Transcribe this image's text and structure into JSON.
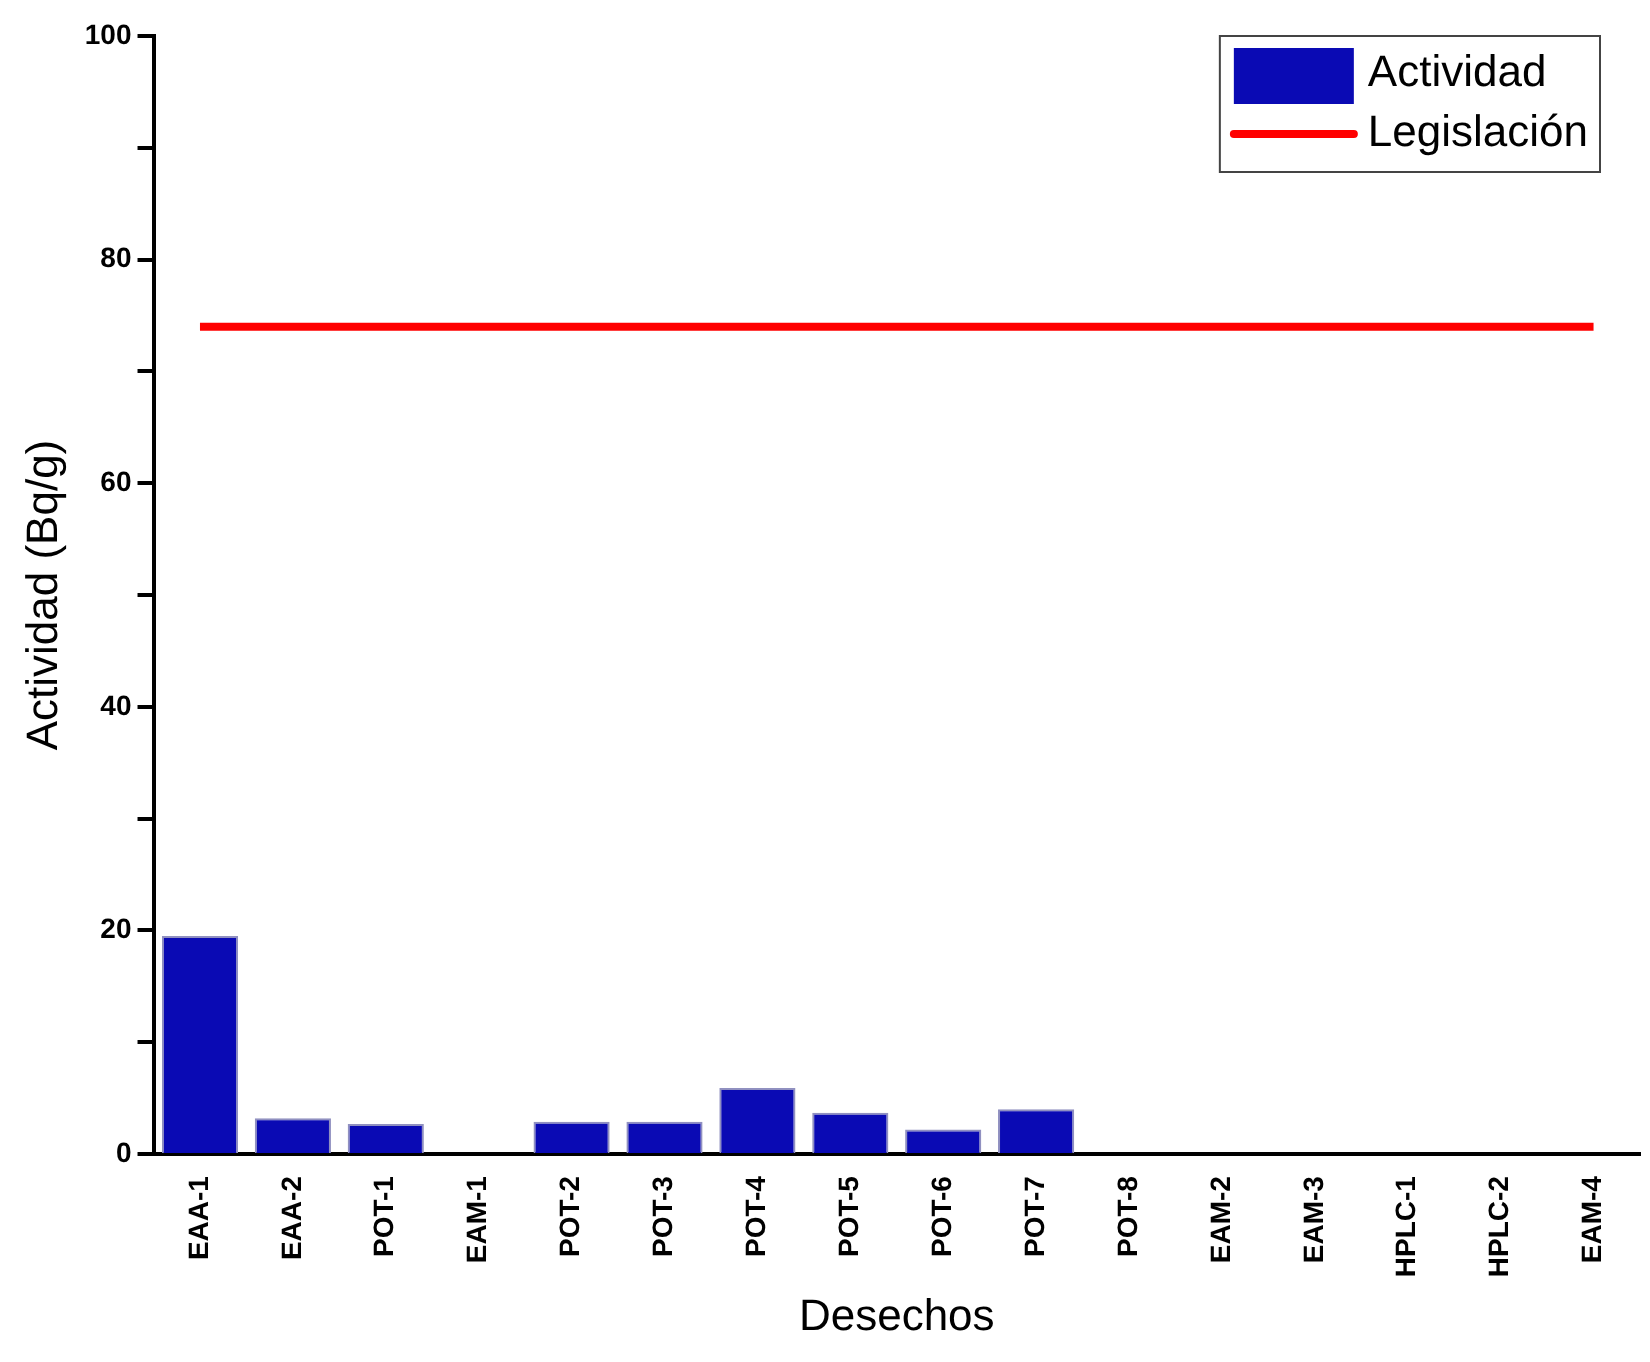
{
  "chart_data": {
    "type": "bar",
    "xlabel": "Desechos",
    "ylabel": "Actividad (Bq/g)",
    "categories": [
      "EAA-1",
      "EAA-2",
      "POT-1",
      "EAM-1",
      "POT-2",
      "POT-3",
      "POT-4",
      "POT-5",
      "POT-6",
      "POT-7",
      "POT-8",
      "EAM-2",
      "EAM-3",
      "HPLC-1",
      "HPLC-2",
      "EAM-4"
    ],
    "series": [
      {
        "name": "Actividad",
        "color": "#0a0ab4",
        "values": [
          19.5,
          3.2,
          2.7,
          0,
          2.9,
          2.9,
          5.9,
          3.7,
          2.2,
          4.0,
          0,
          0,
          0,
          0,
          0,
          0
        ]
      },
      {
        "name": "Legislación",
        "type": "line",
        "color": "#ff0000",
        "values": [
          74,
          74,
          74,
          74,
          74,
          74,
          74,
          74,
          74,
          74,
          74,
          74,
          74,
          74,
          74,
          74
        ]
      }
    ],
    "ylim": [
      0,
      100
    ],
    "yticks": [
      0,
      {
        "value": 10,
        "label": null
      },
      20,
      {
        "value": 30,
        "label": null
      },
      40,
      {
        "value": 50,
        "label": null
      },
      60,
      {
        "value": 70,
        "label": null
      },
      80,
      {
        "value": 90,
        "label": null
      },
      100
    ],
    "grid": false,
    "legend": "top right",
    "marker": "none",
    "line_style": "solid"
  }
}
